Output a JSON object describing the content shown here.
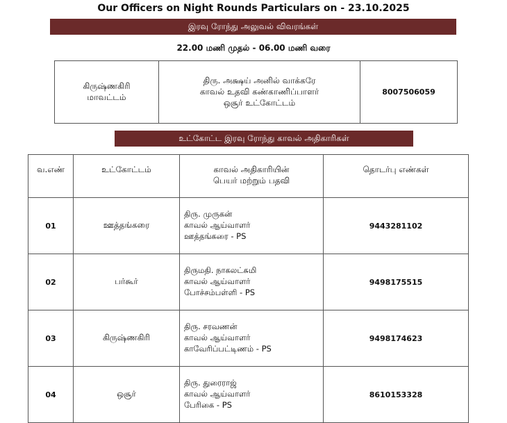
{
  "header": {
    "title": "Our Officers on Night Rounds Particulars on - 23.10.2025",
    "banner": "இரவு ரோந்து அலுவல் விவரங்கள்",
    "timing": "22.00 மணி முதல் - 06.00 மணி வரை"
  },
  "district": {
    "area": [
      "கிருஷ்ணகிரி",
      "மாவட்டம்"
    ],
    "officer": [
      "திரு. அக்ஷய் அனில் வாக்கரே",
      "காவல் உதவி கண்காணிப்பாளர்",
      "ஒசூர் உட்கோட்டம்"
    ],
    "phone": "8007506059"
  },
  "subdivision": {
    "banner": "உட்கோட்ட இரவு ரோந்து காவல் அதிகாரிகள்",
    "columns": [
      "வ.எண்",
      "உட்கோட்டம்",
      [
        "காவல் அதிகாரியின்",
        "பெயர் மற்றும் பதவி"
      ],
      "தொடர்பு எண்கள்"
    ],
    "rows": [
      [
        "01",
        "ஊத்தங்கரை",
        [
          "திரு. முருகன்",
          "காவல் ஆய்வாளர்",
          "ஊத்தங்கரை - PS"
        ],
        "9443281102"
      ],
      [
        "02",
        "பர்கூர்",
        [
          "திருமதி. நாகலட்சுமி",
          "காவல் ஆய்வாளர்",
          "போச்சம்பள்ளி - PS"
        ],
        "9498175515"
      ],
      [
        "03",
        "கிருஷ்ணகிரி",
        [
          "திரு. சரவணன்",
          "காவல் ஆய்வாளர்",
          "காவேரிப்பட்டிணம் - PS"
        ],
        "9498174623"
      ],
      [
        "04",
        "ஒசூர்",
        [
          "திரு. துரைராஜ்",
          "காவல் ஆய்வாளர்",
          "பேரிகை - PS"
        ],
        "8610153328"
      ]
    ]
  }
}
